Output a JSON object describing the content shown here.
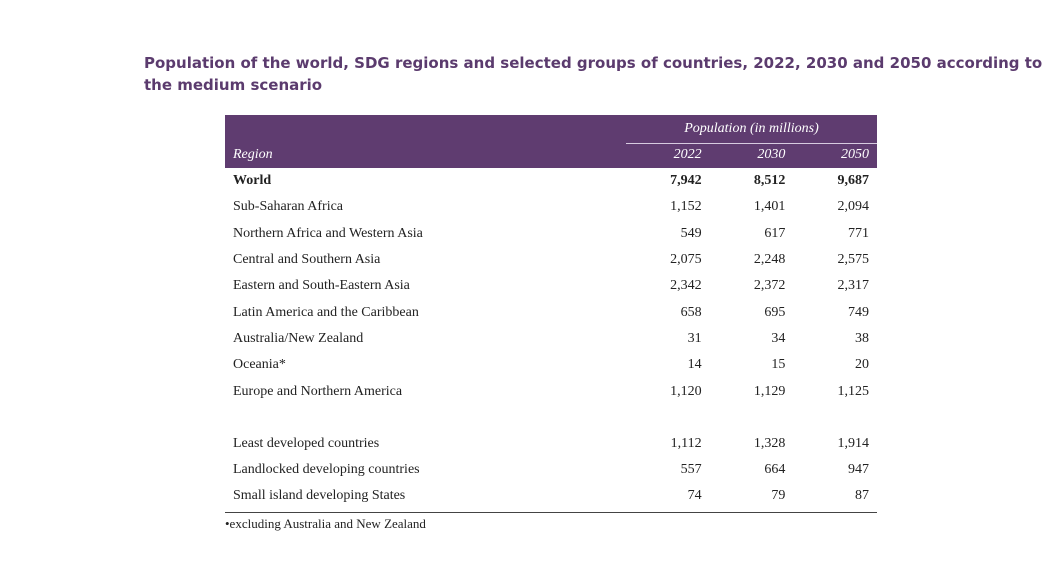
{
  "title": {
    "line1": "Population of the world, SDG regions and selected groups of countries, 2022, 2030 and 2050 according to",
    "line2": "the medium scenario"
  },
  "table": {
    "group_header": "Population (in millions)",
    "columns": [
      "Region",
      "2022",
      "2030",
      "2050"
    ],
    "rows": [
      {
        "region": "World",
        "y2022": "7,942",
        "y2030": "8,512",
        "y2050": "9,687"
      },
      {
        "region": "Sub-Saharan Africa",
        "y2022": "1,152",
        "y2030": "1,401",
        "y2050": "2,094"
      },
      {
        "region": "Northern Africa and Western Asia",
        "y2022": "549",
        "y2030": "617",
        "y2050": "771"
      },
      {
        "region": "Central and Southern Asia",
        "y2022": "2,075",
        "y2030": "2,248",
        "y2050": "2,575"
      },
      {
        "region": "Eastern and South-Eastern Asia",
        "y2022": "2,342",
        "y2030": "2,372",
        "y2050": "2,317"
      },
      {
        "region": "Latin America and the Caribbean",
        "y2022": "658",
        "y2030": "695",
        "y2050": "749"
      },
      {
        "region": "Australia/New Zealand",
        "y2022": "31",
        "y2030": "34",
        "y2050": "38"
      },
      {
        "region": "Oceania*",
        "y2022": "14",
        "y2030": "15",
        "y2050": "20"
      },
      {
        "region": "Europe and Northern America",
        "y2022": "1,120",
        "y2030": "1,129",
        "y2050": "1,125"
      }
    ],
    "group_rows": [
      {
        "region": "Least developed countries",
        "y2022": "1,112",
        "y2030": "1,328",
        "y2050": "1,914"
      },
      {
        "region": "Landlocked developing countries",
        "y2022": "557",
        "y2030": "664",
        "y2050": "947"
      },
      {
        "region": "Small island developing States",
        "y2022": "74",
        "y2030": "79",
        "y2050": "87"
      }
    ]
  },
  "footnote": "•excluding Australia and New Zealand",
  "colors": {
    "header_bg": "#5f3c70",
    "title": "#5b3b6e"
  }
}
